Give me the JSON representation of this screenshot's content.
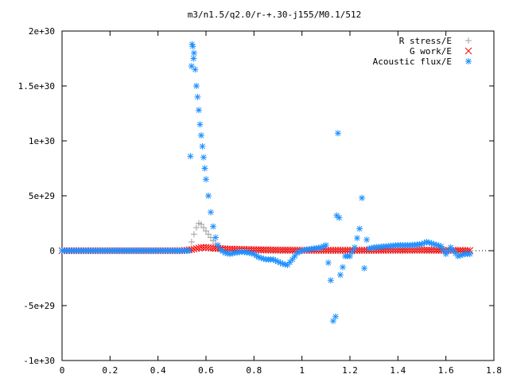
{
  "chart_data": {
    "type": "scatter",
    "title": "m3/n1.5/q2.0/r-+.30-j155/M0.1/512",
    "xlabel": "",
    "ylabel": "",
    "xlim": [
      0,
      1.8
    ],
    "ylim": [
      -1e+30,
      2e+30
    ],
    "x_ticks": [
      "0",
      "0.2",
      "0.4",
      "0.6",
      "0.8",
      "1",
      "1.2",
      "1.4",
      "1.6",
      "1.8"
    ],
    "y_ticks": [
      "-1e+30",
      "-5e+29",
      "0",
      "5e+29",
      "1e+30",
      "1.5e+30",
      "2e+30"
    ],
    "grid": false,
    "legend_position": "top-right",
    "series": [
      {
        "name": "R stress/E",
        "marker": "plus",
        "color": "#a0a0a0",
        "x": [
          0.0,
          0.1,
          0.2,
          0.3,
          0.4,
          0.5,
          0.53,
          0.54,
          0.55,
          0.56,
          0.57,
          0.58,
          0.59,
          0.6,
          0.61,
          0.62,
          0.63,
          0.64,
          0.65,
          0.66,
          0.68,
          0.7,
          0.75,
          0.8,
          0.9,
          1.0,
          1.1,
          1.2,
          1.3,
          1.4,
          1.5,
          1.6,
          1.7
        ],
        "y": [
          0,
          0,
          0,
          0,
          0,
          0,
          0,
          8e+28,
          1.5e+29,
          2.1e+29,
          2.5e+29,
          2.4e+29,
          2.1e+29,
          1.8e+29,
          1.5e+29,
          1.2e+29,
          9e+28,
          6e+28,
          3e+28,
          1e+28,
          0,
          0,
          0,
          0,
          0,
          0,
          0,
          0,
          0,
          0,
          0,
          0,
          0
        ]
      },
      {
        "name": "G work/E",
        "marker": "cross",
        "color": "#ff0000",
        "x": [
          0.0,
          0.1,
          0.2,
          0.3,
          0.4,
          0.5,
          0.54,
          0.56,
          0.58,
          0.6,
          0.62,
          0.65,
          0.7,
          0.75,
          0.8,
          0.85,
          0.9,
          0.95,
          1.0,
          1.05,
          1.1,
          1.15,
          1.2,
          1.25,
          1.3,
          1.35,
          1.4,
          1.45,
          1.5,
          1.55,
          1.6,
          1.65,
          1.7
        ],
        "y": [
          0,
          0,
          0,
          0,
          0,
          0,
          1e+28,
          2e+28,
          3e+28,
          3e+28,
          2.5e+28,
          2e+28,
          1.5e+28,
          1.2e+28,
          1e+28,
          8e+27,
          6e+27,
          5e+27,
          4e+27,
          4e+27,
          4e+27,
          4e+27,
          4e+27,
          4e+27,
          4e+27,
          5e+27,
          5e+27,
          6e+27,
          6e+27,
          5e+27,
          4e+27,
          3e+27,
          2e+27
        ]
      },
      {
        "name": "Acoustic flux/E",
        "marker": "star",
        "color": "#1e90ff",
        "x": [
          0.0,
          0.05,
          0.1,
          0.15,
          0.2,
          0.25,
          0.3,
          0.35,
          0.4,
          0.45,
          0.5,
          0.53,
          0.535,
          0.54,
          0.542,
          0.545,
          0.548,
          0.55,
          0.555,
          0.56,
          0.565,
          0.57,
          0.575,
          0.58,
          0.585,
          0.59,
          0.595,
          0.6,
          0.61,
          0.62,
          0.63,
          0.64,
          0.65,
          0.66,
          0.67,
          0.68,
          0.7,
          0.72,
          0.75,
          0.78,
          0.8,
          0.82,
          0.85,
          0.88,
          0.9,
          0.92,
          0.94,
          0.96,
          0.98,
          1.0,
          1.02,
          1.05,
          1.08,
          1.1,
          1.12,
          1.13,
          1.14,
          1.145,
          1.15,
          1.155,
          1.16,
          1.17,
          1.18,
          1.2,
          1.22,
          1.24,
          1.25,
          1.26,
          1.27,
          1.28,
          1.3,
          1.35,
          1.4,
          1.45,
          1.5,
          1.52,
          1.55,
          1.58,
          1.6,
          1.62,
          1.65,
          1.68,
          1.7
        ],
        "y": [
          0,
          0,
          0,
          0,
          0,
          0,
          0,
          0,
          0,
          0,
          0,
          0,
          8.6e+29,
          1.68e+30,
          1.88e+30,
          1.86e+30,
          1.75e+30,
          1.8e+30,
          1.65e+30,
          1.5e+30,
          1.4e+30,
          1.28e+30,
          1.15e+30,
          1.05e+30,
          9.5e+29,
          8.5e+29,
          7.5e+29,
          6.5e+29,
          5e+29,
          3.5e+29,
          2.2e+29,
          1.2e+29,
          5e+28,
          1e+28,
          -5e+27,
          -2e+28,
          -3e+28,
          -2e+28,
          -1e+28,
          -2e+28,
          -3e+28,
          -6e+28,
          -8e+28,
          -8e+28,
          -1e+29,
          -1.2e+29,
          -1.3e+29,
          -8e+28,
          -2e+28,
          0,
          1e+28,
          2e+28,
          3e+28,
          5e+28,
          -2.7e+29,
          -6.4e+29,
          -6e+29,
          3.2e+29,
          1.07e+30,
          3e+29,
          -2.2e+29,
          -1.5e+29,
          -5e+28,
          -5e+28,
          3e+28,
          2e+29,
          4.8e+29,
          -1.6e+29,
          1e+29,
          2e+28,
          3e+28,
          4e+28,
          5e+28,
          5e+28,
          6e+28,
          8e+28,
          6e+28,
          4e+28,
          -3e+28,
          3e+28,
          -5e+28,
          -3e+28,
          -3e+28
        ]
      }
    ]
  }
}
